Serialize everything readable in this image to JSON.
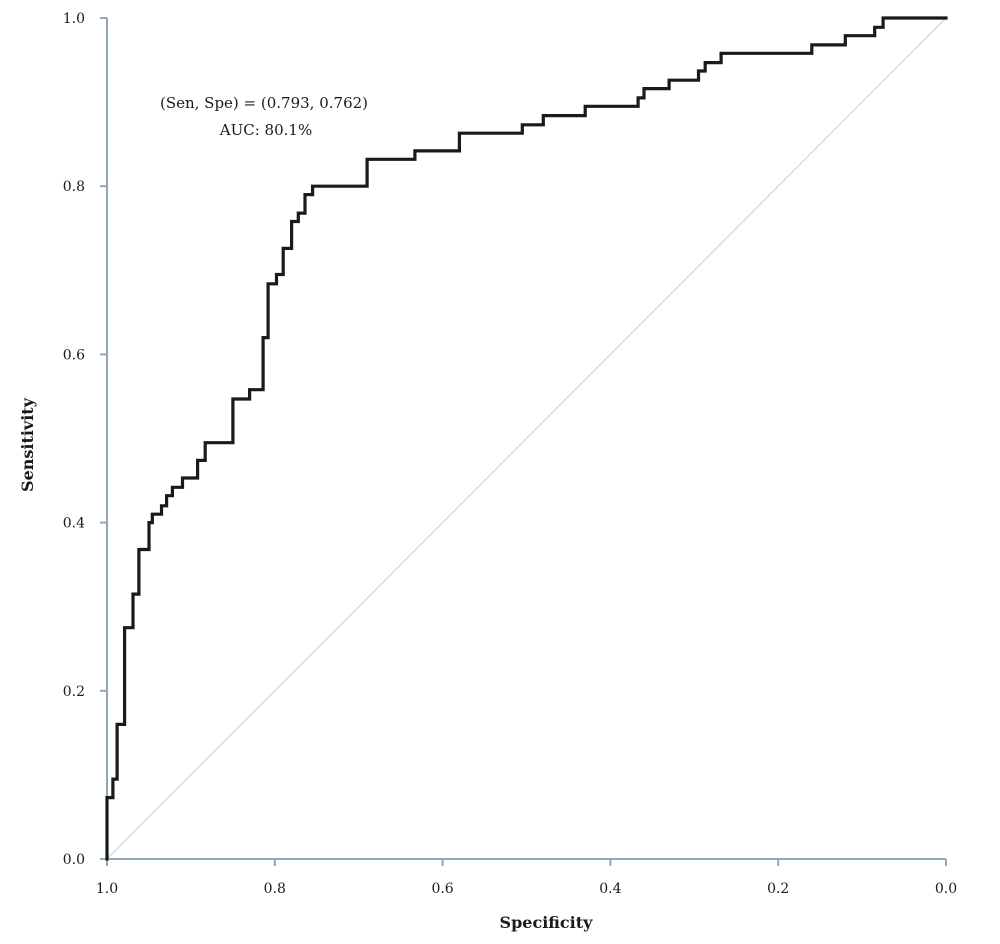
{
  "chart_data": {
    "type": "line",
    "xlabel": "Specificity",
    "ylabel": "Sensitivity",
    "xlim": [
      1.0,
      0.0
    ],
    "ylim": [
      0.0,
      1.0
    ],
    "x_ticks": [
      "1.0",
      "0.8",
      "0.6",
      "0.4",
      "0.2",
      "0.0"
    ],
    "y_ticks": [
      "0.0",
      "0.2",
      "0.4",
      "0.6",
      "0.8",
      "1.0"
    ],
    "grid": false,
    "legend": "none",
    "annotations": [
      "(Sen, Spe) = (0.793, 0.762)",
      "AUC: 80.1%"
    ],
    "colors": {
      "roc": "#1a1a1a",
      "reference": "#c5dede",
      "axis": "#8ea9b9"
    },
    "series": [
      {
        "role": "roc",
        "specificity": [
          1.0,
          1.0,
          0.993,
          0.993,
          0.988,
          0.988,
          0.979,
          0.979,
          0.969,
          0.969,
          0.962,
          0.962,
          0.95,
          0.95,
          0.946,
          0.946,
          0.935,
          0.935,
          0.929,
          0.929,
          0.922,
          0.922,
          0.91,
          0.91,
          0.892,
          0.892,
          0.883,
          0.883,
          0.85,
          0.85,
          0.83,
          0.83,
          0.814,
          0.814,
          0.808,
          0.808,
          0.798,
          0.798,
          0.79,
          0.79,
          0.78,
          0.78,
          0.772,
          0.772,
          0.764,
          0.764,
          0.755,
          0.755,
          0.745,
          0.745,
          0.69,
          0.69,
          0.633,
          0.633,
          0.58,
          0.58,
          0.505,
          0.505,
          0.48,
          0.48,
          0.43,
          0.43,
          0.367,
          0.367,
          0.36,
          0.36,
          0.33,
          0.33,
          0.295,
          0.295,
          0.287,
          0.287,
          0.268,
          0.268,
          0.245,
          0.245,
          0.16,
          0.16,
          0.12,
          0.12,
          0.085,
          0.085,
          0.075,
          0.075,
          0.0
        ],
        "sensitivity": [
          0.0,
          0.073,
          0.073,
          0.095,
          0.095,
          0.16,
          0.16,
          0.275,
          0.275,
          0.315,
          0.315,
          0.368,
          0.368,
          0.4,
          0.4,
          0.41,
          0.41,
          0.42,
          0.42,
          0.432,
          0.432,
          0.442,
          0.442,
          0.453,
          0.453,
          0.474,
          0.474,
          0.495,
          0.495,
          0.547,
          0.547,
          0.558,
          0.558,
          0.62,
          0.62,
          0.684,
          0.684,
          0.695,
          0.695,
          0.726,
          0.726,
          0.758,
          0.758,
          0.768,
          0.768,
          0.79,
          0.79,
          0.8,
          0.8,
          0.8,
          0.8,
          0.832,
          0.832,
          0.842,
          0.842,
          0.863,
          0.863,
          0.873,
          0.873,
          0.884,
          0.884,
          0.895,
          0.895,
          0.905,
          0.905,
          0.916,
          0.916,
          0.926,
          0.926,
          0.937,
          0.937,
          0.947,
          0.947,
          0.958,
          0.958,
          0.958,
          0.958,
          0.968,
          0.968,
          0.979,
          0.979,
          0.989,
          0.989,
          1.0,
          1.0
        ]
      },
      {
        "role": "reference",
        "specificity": [
          1.0,
          0.0
        ],
        "sensitivity": [
          0.0,
          1.0
        ]
      }
    ]
  }
}
